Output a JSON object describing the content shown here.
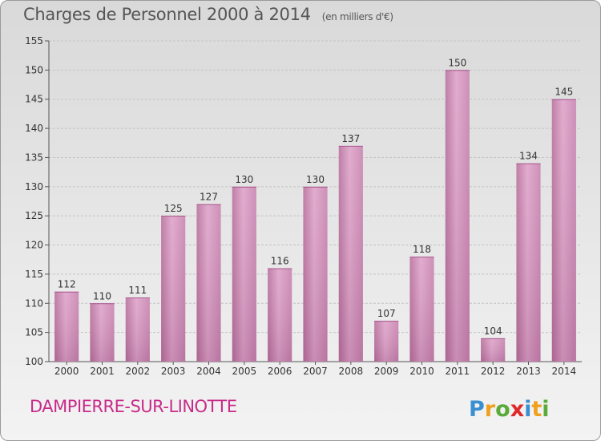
{
  "header": {
    "title": "Charges de Personnel 2000 à 2014",
    "subtitle": "(en milliers d'€)"
  },
  "footer": {
    "town": "DAMPIERRE-SUR-LINOTTE",
    "logo_text": "Proxiti"
  },
  "colors": {
    "bar": "#d08cb8",
    "town": "#c82b8a"
  },
  "chart_data": {
    "type": "bar",
    "title": "Charges de Personnel 2000 à 2014",
    "subtitle": "(en milliers d'€)",
    "xlabel": "",
    "ylabel": "",
    "ylim": [
      100,
      155
    ],
    "yticks": [
      100,
      105,
      110,
      115,
      120,
      125,
      130,
      135,
      140,
      145,
      150,
      155
    ],
    "grid": true,
    "categories": [
      "2000",
      "2001",
      "2002",
      "2003",
      "2004",
      "2005",
      "2006",
      "2007",
      "2008",
      "2009",
      "2010",
      "2011",
      "2012",
      "2013",
      "2014"
    ],
    "values": [
      112,
      110,
      111,
      125,
      127,
      130,
      116,
      130,
      137,
      107,
      118,
      150,
      104,
      134,
      145
    ],
    "data_labels": [
      "112",
      "110",
      "111",
      "125",
      "127",
      "130",
      "116",
      "130",
      "137",
      "107",
      "118",
      "150",
      "104",
      "134",
      "145"
    ]
  }
}
